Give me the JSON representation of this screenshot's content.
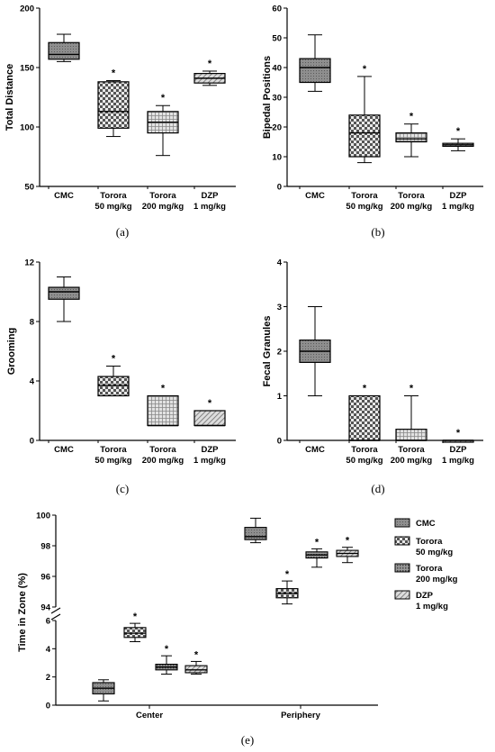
{
  "captions": [
    "(a)",
    "(b)",
    "(c)",
    "(d)",
    "(e)"
  ],
  "colors": {
    "stroke": "#000000",
    "fill_cmc": "#8e8e8e",
    "fill_light": "#d8d8d8"
  },
  "chart_data": [
    {
      "type": "box",
      "panel": "(a)",
      "ylabel": "Total Distance",
      "ylim": [
        50,
        200
      ],
      "yticks": [
        50,
        100,
        150,
        200
      ],
      "categories": [
        [
          "CMC"
        ],
        [
          "Torora",
          "50 mg/kg"
        ],
        [
          "Torora",
          "200 mg/kg"
        ],
        [
          "DZP",
          "1 mg/kg"
        ]
      ],
      "patterns": [
        "cmc",
        "checker",
        "grid",
        "hatch"
      ],
      "boxes": [
        {
          "min": 155,
          "q1": 157,
          "median": 161,
          "q3": 171,
          "max": 178,
          "sig": false
        },
        {
          "min": 92,
          "q1": 99,
          "median": 113,
          "q3": 138,
          "max": 139,
          "sig": true
        },
        {
          "min": 76,
          "q1": 95,
          "median": 104,
          "q3": 113,
          "max": 118,
          "sig": true
        },
        {
          "min": 135,
          "q1": 137,
          "median": 141,
          "q3": 145,
          "max": 147,
          "sig": true
        }
      ],
      "significance_marker": "*"
    },
    {
      "type": "box",
      "panel": "(b)",
      "ylabel": "Bipedal Positions",
      "ylim": [
        0,
        60
      ],
      "yticks": [
        0,
        10,
        20,
        30,
        40,
        50,
        60
      ],
      "categories": [
        [
          "CMC"
        ],
        [
          "Torora",
          "50 mg/kg"
        ],
        [
          "Torora",
          "200 mg/kg"
        ],
        [
          "DZP",
          "1 mg/kg"
        ]
      ],
      "patterns": [
        "cmc",
        "checker",
        "grid",
        "hatch"
      ],
      "boxes": [
        {
          "min": 32,
          "q1": 35,
          "median": 40,
          "q3": 43,
          "max": 51,
          "sig": false
        },
        {
          "min": 8,
          "q1": 10,
          "median": 18,
          "q3": 24,
          "max": 37,
          "sig": true
        },
        {
          "min": 10,
          "q1": 15,
          "median": 16,
          "q3": 18,
          "max": 21,
          "sig": true
        },
        {
          "min": 12,
          "q1": 13.5,
          "median": 14,
          "q3": 14.5,
          "max": 16,
          "sig": true
        }
      ],
      "significance_marker": "*"
    },
    {
      "type": "box",
      "panel": "(c)",
      "ylabel": "Grooming",
      "ylim": [
        0,
        12
      ],
      "yticks": [
        0,
        4,
        8,
        12
      ],
      "categories": [
        [
          "CMC"
        ],
        [
          "Torora",
          "50 mg/kg"
        ],
        [
          "Torora",
          "200 mg/kg"
        ],
        [
          "DZP",
          "1 mg/kg"
        ]
      ],
      "patterns": [
        "cmc",
        "checker",
        "grid",
        "hatch"
      ],
      "boxes": [
        {
          "min": 8,
          "q1": 9.5,
          "median": 10,
          "q3": 10.3,
          "max": 11,
          "sig": false
        },
        {
          "min": 3,
          "q1": 3,
          "median": 3.7,
          "q3": 4.3,
          "max": 5,
          "sig": true
        },
        {
          "min": 1,
          "q1": 1,
          "median": 1,
          "q3": 3,
          "max": 3,
          "sig": true
        },
        {
          "min": 1,
          "q1": 1,
          "median": 1,
          "q3": 2,
          "max": 2,
          "sig": true
        }
      ],
      "significance_marker": "*"
    },
    {
      "type": "box",
      "panel": "(d)",
      "ylabel": "Fecal Granules",
      "ylim": [
        0,
        4
      ],
      "yticks": [
        0,
        1,
        2,
        3,
        4
      ],
      "categories": [
        [
          "CMC"
        ],
        [
          "Torora",
          "50 mg/kg"
        ],
        [
          "Torora",
          "200 mg/kg"
        ],
        [
          "DZP",
          "1 mg/kg"
        ]
      ],
      "patterns": [
        "cmc",
        "checker",
        "grid",
        "hatch"
      ],
      "boxes": [
        {
          "min": 1,
          "q1": 1.75,
          "median": 2,
          "q3": 2.25,
          "max": 3,
          "sig": false
        },
        {
          "min": 0,
          "q1": 0,
          "median": 0,
          "q3": 1,
          "max": 1,
          "sig": true
        },
        {
          "min": 0,
          "q1": 0,
          "median": 0,
          "q3": 0.25,
          "max": 1,
          "sig": true
        },
        {
          "min": 0,
          "q1": 0,
          "median": 0,
          "q3": 0,
          "max": 0,
          "sig": true
        }
      ],
      "significance_marker": "*"
    },
    {
      "type": "box",
      "panel": "(e)",
      "ylabel": "Time in Zone (%)",
      "broken_axis": true,
      "ylim_lower": [
        0,
        6
      ],
      "ylim_upper": [
        94,
        100
      ],
      "yticks_lower": [
        0,
        2,
        4,
        6
      ],
      "yticks_upper": [
        94,
        96,
        98,
        100
      ],
      "categories": [
        "Center",
        "Periphery"
      ],
      "legend": [
        [
          "CMC"
        ],
        [
          "Torora",
          "50 mg/kg"
        ],
        [
          "Torora",
          "200 mg/kg"
        ],
        [
          "DZP",
          "1 mg/kg"
        ]
      ],
      "legend_position": "right",
      "patterns": [
        "cmc",
        "checker",
        "dense",
        "hatch"
      ],
      "groups": [
        [
          {
            "min": 0.3,
            "q1": 0.8,
            "median": 1.2,
            "q3": 1.6,
            "max": 1.8,
            "sig": false
          },
          {
            "min": 4.5,
            "q1": 4.8,
            "median": 5.1,
            "q3": 5.5,
            "max": 5.8,
            "sig": true
          },
          {
            "min": 2.2,
            "q1": 2.5,
            "median": 2.7,
            "q3": 2.9,
            "max": 3.5,
            "sig": true
          },
          {
            "min": 2.2,
            "q1": 2.3,
            "median": 2.5,
            "q3": 2.8,
            "max": 3.1,
            "sig": true
          }
        ],
        [
          {
            "min": 98.2,
            "q1": 98.4,
            "median": 98.6,
            "q3": 99.2,
            "max": 99.8,
            "sig": false
          },
          {
            "min": 94.2,
            "q1": 94.6,
            "median": 94.9,
            "q3": 95.2,
            "max": 95.7,
            "sig": true
          },
          {
            "min": 96.6,
            "q1": 97.2,
            "median": 97.4,
            "q3": 97.6,
            "max": 97.8,
            "sig": true
          },
          {
            "min": 96.9,
            "q1": 97.3,
            "median": 97.5,
            "q3": 97.7,
            "max": 97.9,
            "sig": true
          }
        ]
      ],
      "significance_marker": "*"
    }
  ]
}
